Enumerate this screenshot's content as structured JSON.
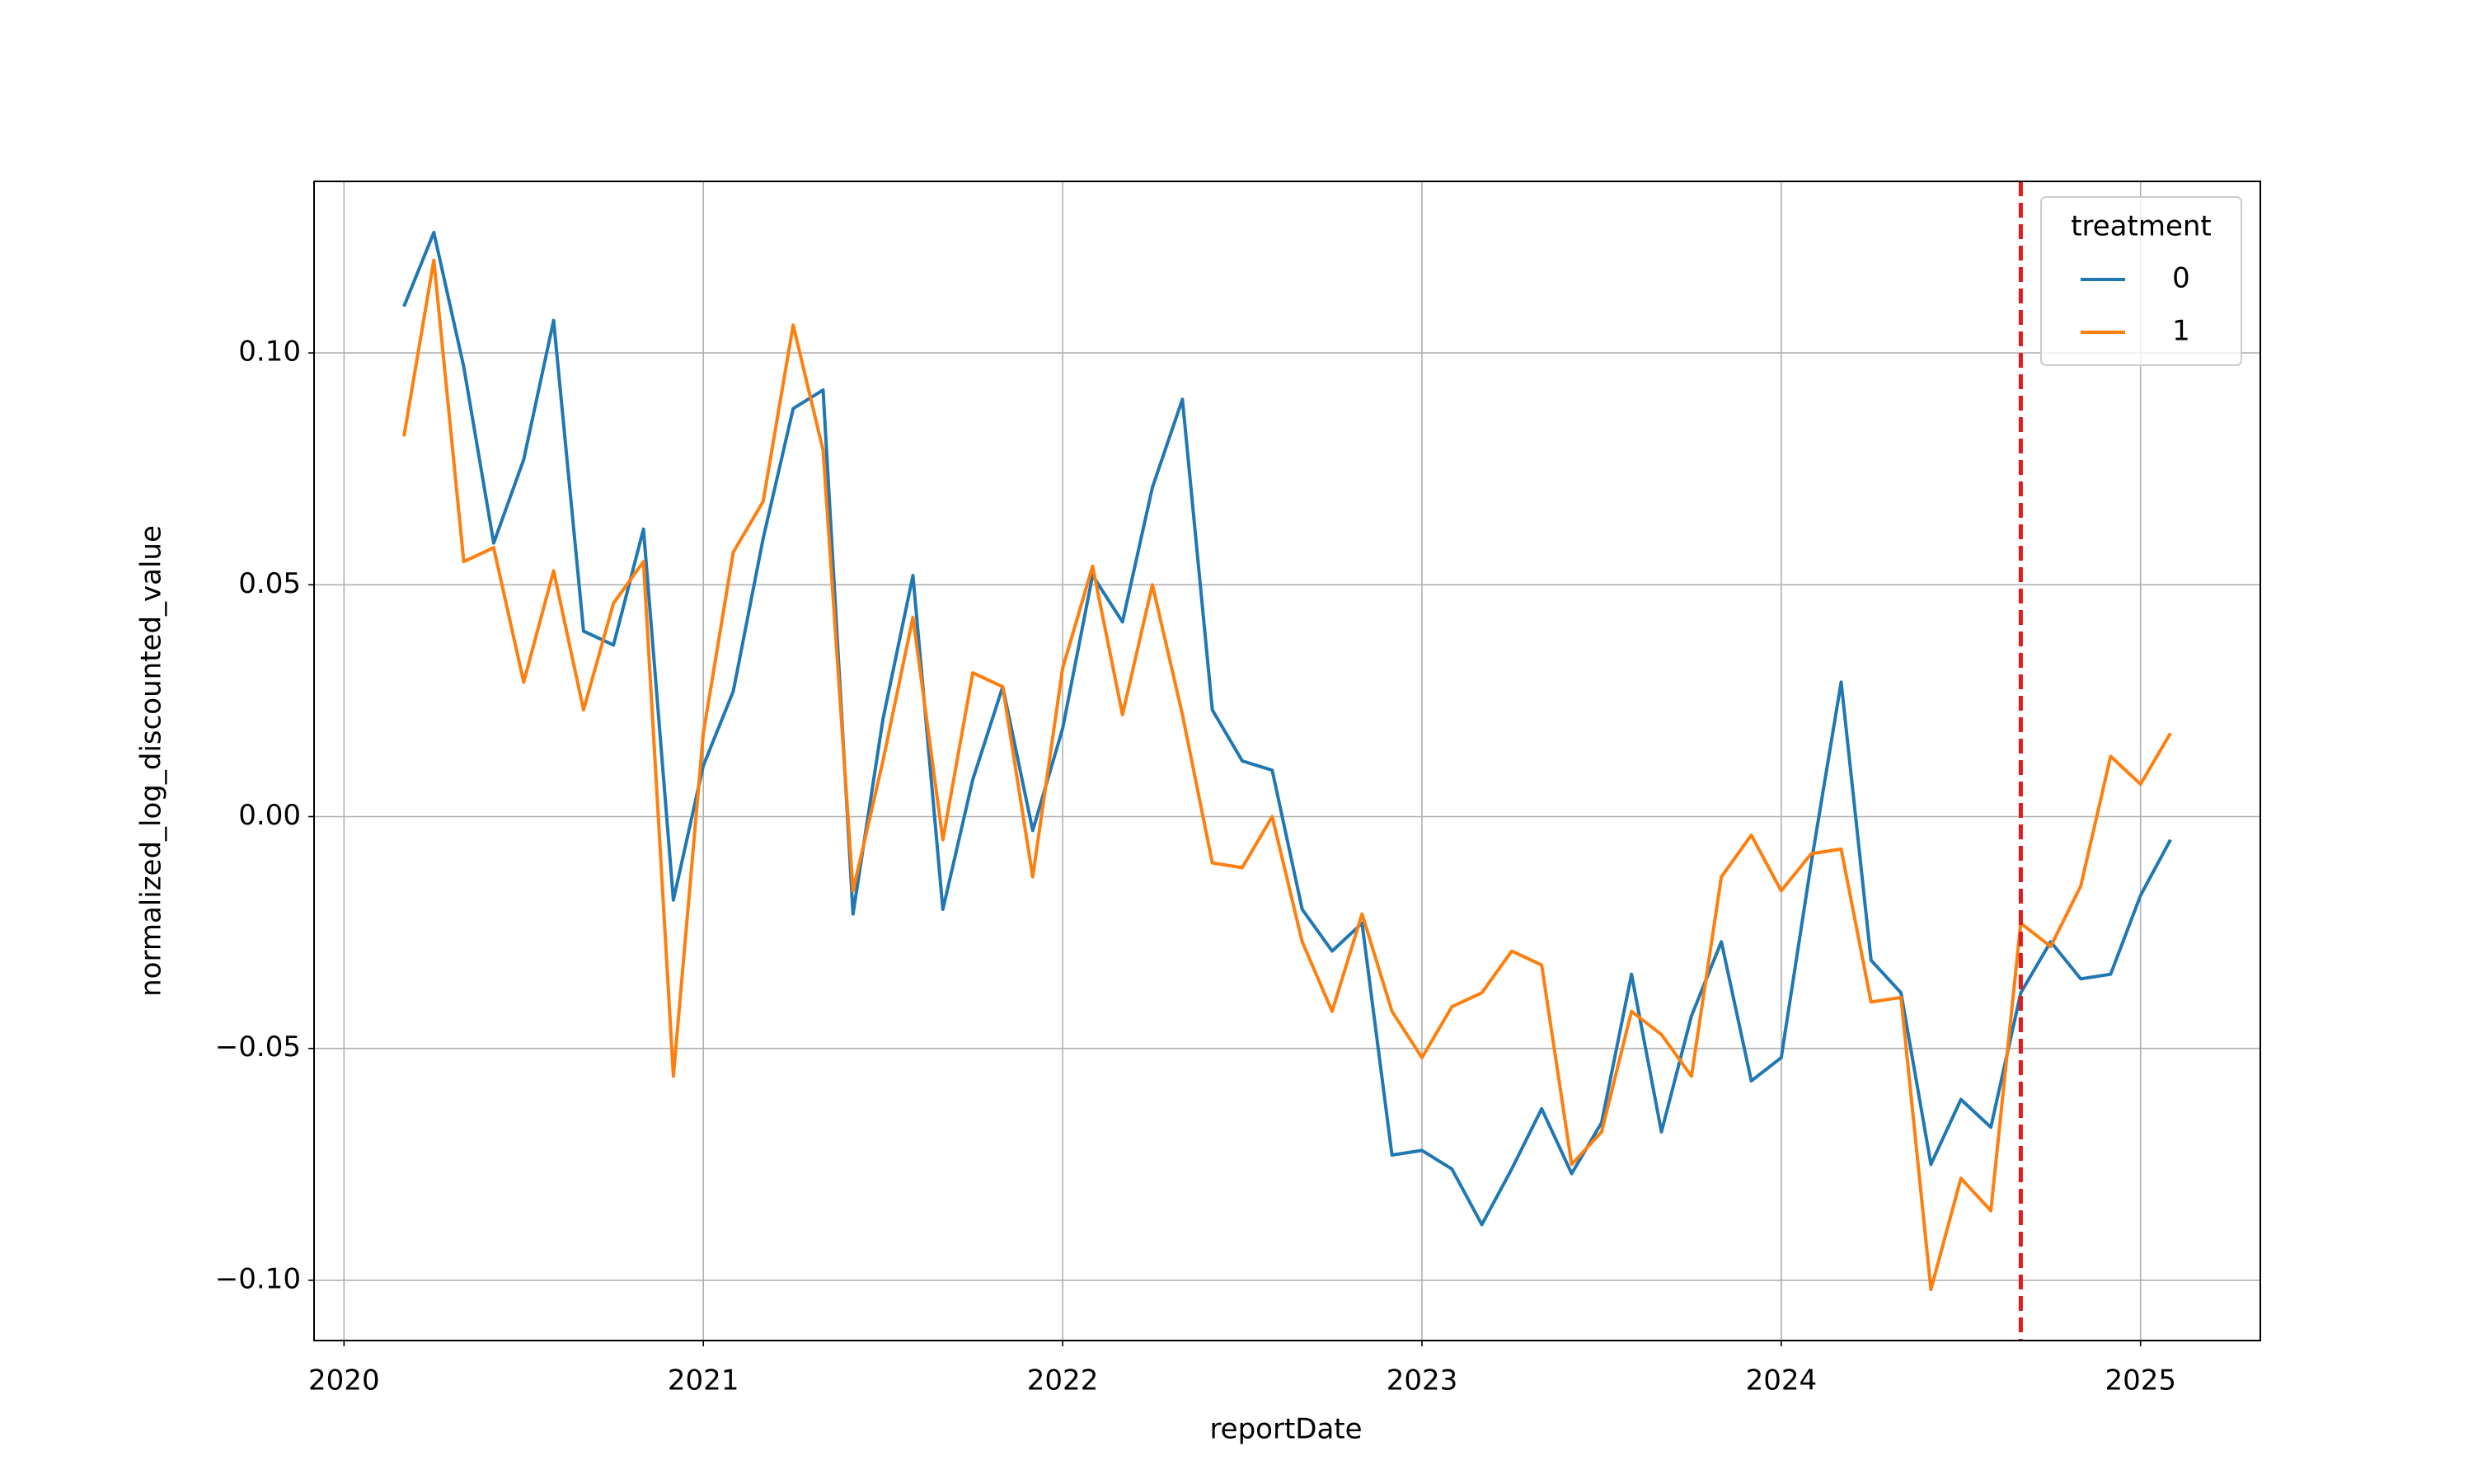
{
  "chart_data": {
    "type": "line",
    "xlabel": "reportDate",
    "ylabel": "normalized_log_discounted_value",
    "x": [
      "2020-03",
      "2020-04",
      "2020-05",
      "2020-06",
      "2020-07",
      "2020-08",
      "2020-09",
      "2020-10",
      "2020-11",
      "2020-12",
      "2021-01",
      "2021-02",
      "2021-03",
      "2021-04",
      "2021-05",
      "2021-06",
      "2021-07",
      "2021-08",
      "2021-09",
      "2021-10",
      "2021-11",
      "2021-12",
      "2022-01",
      "2022-02",
      "2022-03",
      "2022-04",
      "2022-05",
      "2022-06",
      "2022-07",
      "2022-08",
      "2022-09",
      "2022-10",
      "2022-11",
      "2022-12",
      "2023-01",
      "2023-02",
      "2023-03",
      "2023-04",
      "2023-05",
      "2023-06",
      "2023-07",
      "2023-08",
      "2023-09",
      "2023-10",
      "2023-11",
      "2023-12",
      "2024-01",
      "2024-02",
      "2024-03",
      "2024-04",
      "2024-05",
      "2024-06",
      "2024-07",
      "2024-08",
      "2024-09",
      "2024-10",
      "2024-11",
      "2024-12",
      "2025-01",
      "2025-02"
    ],
    "series": [
      {
        "name": "0",
        "color": "#1f77b4",
        "values": [
          0.11,
          0.126,
          0.097,
          0.059,
          0.077,
          0.107,
          0.04,
          0.037,
          0.062,
          -0.018,
          0.011,
          0.027,
          0.06,
          0.088,
          0.092,
          -0.021,
          0.021,
          0.052,
          -0.02,
          0.008,
          0.028,
          -0.003,
          0.019,
          0.052,
          0.042,
          0.071,
          0.09,
          0.023,
          0.012,
          0.01,
          -0.02,
          -0.029,
          -0.023,
          -0.073,
          -0.072,
          -0.076,
          -0.088,
          -0.076,
          -0.063,
          -0.077,
          -0.066,
          -0.034,
          -0.068,
          -0.043,
          -0.027,
          -0.057,
          -0.052,
          -0.01,
          0.029,
          -0.031,
          -0.038,
          -0.075,
          -0.061,
          -0.067,
          -0.038,
          -0.027,
          -0.035,
          -0.034,
          -0.017,
          -0.005
        ]
      },
      {
        "name": "1",
        "color": "#ff7f0e",
        "values": [
          0.082,
          0.12,
          0.055,
          0.058,
          0.029,
          0.053,
          0.023,
          0.046,
          0.055,
          -0.056,
          0.018,
          0.057,
          0.068,
          0.106,
          0.079,
          -0.016,
          0.012,
          0.043,
          -0.005,
          0.031,
          0.028,
          -0.013,
          0.032,
          0.054,
          0.022,
          0.05,
          0.022,
          -0.01,
          -0.011,
          0.0,
          -0.027,
          -0.042,
          -0.021,
          -0.042,
          -0.052,
          -0.041,
          -0.038,
          -0.029,
          -0.032,
          -0.075,
          -0.068,
          -0.042,
          -0.047,
          -0.056,
          -0.013,
          -0.004,
          -0.016,
          -0.008,
          -0.007,
          -0.04,
          -0.039,
          -0.102,
          -0.078,
          -0.085,
          -0.023,
          -0.028,
          -0.015,
          0.013,
          0.007,
          0.018
        ]
      }
    ],
    "xlim": [
      "2019-12",
      "2025-05"
    ],
    "ylim": [
      -0.113,
      0.137
    ],
    "xticks": [
      {
        "value": "2020-01",
        "label": "2020"
      },
      {
        "value": "2021-01",
        "label": "2021"
      },
      {
        "value": "2022-01",
        "label": "2022"
      },
      {
        "value": "2023-01",
        "label": "2023"
      },
      {
        "value": "2024-01",
        "label": "2024"
      },
      {
        "value": "2025-01",
        "label": "2025"
      }
    ],
    "yticks": [
      {
        "value": -0.1,
        "label": "−0.10"
      },
      {
        "value": -0.05,
        "label": "−0.05"
      },
      {
        "value": 0,
        "label": "0.00"
      },
      {
        "value": 0.05,
        "label": "0.05"
      },
      {
        "value": 0.1,
        "label": "0.10"
      }
    ],
    "grid": true,
    "vlines": [
      {
        "x": "2024-09",
        "color": "#e41a1c"
      }
    ],
    "legend": {
      "title": "treatment",
      "loc": "upper right"
    }
  }
}
